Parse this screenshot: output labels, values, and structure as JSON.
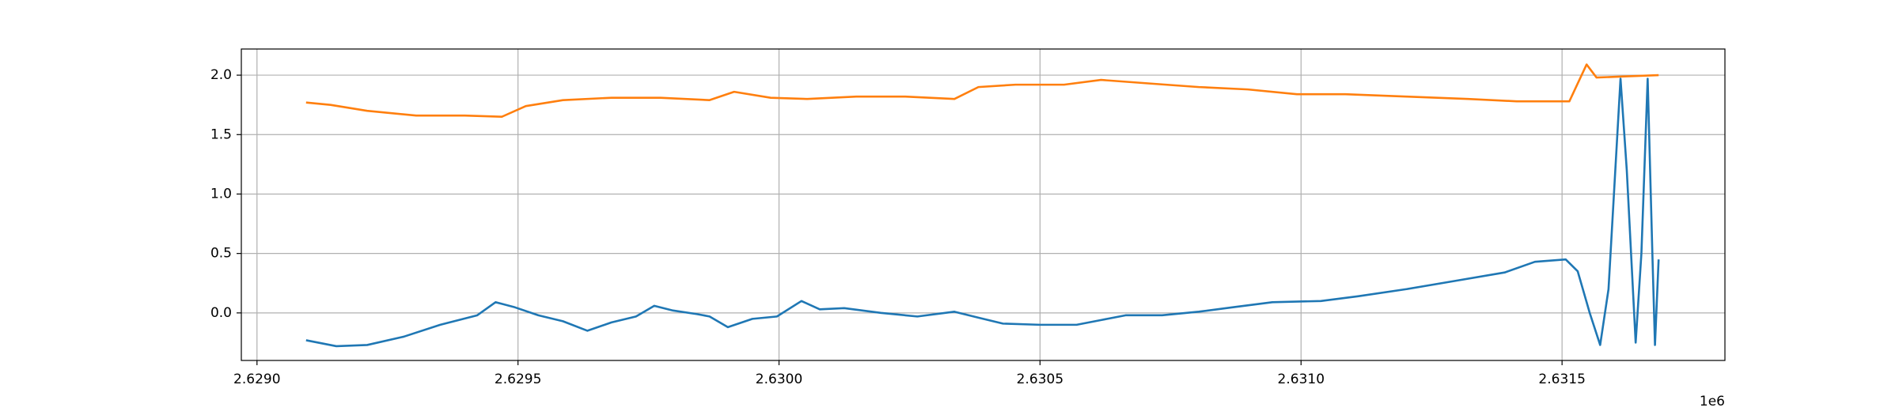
{
  "chart_data": {
    "type": "line",
    "x_offset_label": "1e6",
    "grid": true,
    "xlim": [
      2628970,
      2631812
    ],
    "ylim": [
      -0.4,
      2.22
    ],
    "xticks": [
      {
        "value": 2629000,
        "label": "2.6290"
      },
      {
        "value": 2629500,
        "label": "2.6295"
      },
      {
        "value": 2630000,
        "label": "2.6300"
      },
      {
        "value": 2630500,
        "label": "2.6305"
      },
      {
        "value": 2631000,
        "label": "2.6310"
      },
      {
        "value": 2631500,
        "label": "2.6315"
      }
    ],
    "yticks": [
      {
        "value": 0,
        "label": "0.0"
      },
      {
        "value": 0.5,
        "label": "0.5"
      },
      {
        "value": 1,
        "label": "1.0"
      },
      {
        "value": 1.5,
        "label": "1.5"
      },
      {
        "value": 2,
        "label": "2.0"
      }
    ],
    "series": [
      {
        "color": "#1f77b4",
        "x": [
          2629094,
          2629152,
          2629211,
          2629281,
          2629351,
          2629422,
          2629457,
          2629492,
          2629539,
          2629586,
          2629633,
          2629679,
          2629726,
          2629761,
          2629797,
          2629843,
          2629867,
          2629902,
          2629949,
          2629996,
          2630043,
          2630078,
          2630125,
          2630195,
          2630265,
          2630336,
          2630382,
          2630429,
          2630500,
          2630570,
          2630617,
          2630664,
          2630734,
          2630804,
          2630874,
          2630945,
          2631038,
          2631109,
          2631202,
          2631296,
          2631390,
          2631448,
          2631507,
          2631530,
          2631553,
          2631573,
          2631589,
          2631612,
          2631624,
          2631641,
          2631652,
          2631664,
          2631673,
          2631678,
          2631685
        ],
        "values": [
          -0.23,
          -0.28,
          -0.27,
          -0.2,
          -0.1,
          -0.02,
          0.09,
          0.05,
          -0.02,
          -0.07,
          -0.15,
          -0.08,
          -0.03,
          0.06,
          0.02,
          -0.01,
          -0.03,
          -0.12,
          -0.05,
          -0.03,
          0.1,
          0.03,
          0.04,
          0.0,
          -0.03,
          0.01,
          -0.04,
          -0.09,
          -0.1,
          -0.1,
          -0.06,
          -0.02,
          -0.02,
          0.01,
          0.05,
          0.09,
          0.1,
          0.14,
          0.2,
          0.27,
          0.34,
          0.43,
          0.45,
          0.35,
          0.0,
          -0.27,
          0.2,
          1.97,
          1.2,
          -0.25,
          0.5,
          1.97,
          0.5,
          -0.27,
          0.45
        ]
      },
      {
        "color": "#ff7f0e",
        "x": [
          2629094,
          2629141,
          2629211,
          2629305,
          2629398,
          2629469,
          2629515,
          2629586,
          2629679,
          2629773,
          2629867,
          2629914,
          2629984,
          2630054,
          2630148,
          2630242,
          2630336,
          2630382,
          2630453,
          2630546,
          2630617,
          2630710,
          2630804,
          2630898,
          2630992,
          2631085,
          2631202,
          2631320,
          2631413,
          2631514,
          2631547,
          2631566,
          2631624,
          2631685
        ],
        "values": [
          1.77,
          1.75,
          1.7,
          1.66,
          1.66,
          1.65,
          1.74,
          1.79,
          1.81,
          1.81,
          1.79,
          1.86,
          1.81,
          1.8,
          1.82,
          1.82,
          1.8,
          1.9,
          1.92,
          1.92,
          1.96,
          1.93,
          1.9,
          1.88,
          1.84,
          1.84,
          1.82,
          1.8,
          1.78,
          1.78,
          2.09,
          1.98,
          1.99,
          2.0
        ]
      }
    ]
  }
}
